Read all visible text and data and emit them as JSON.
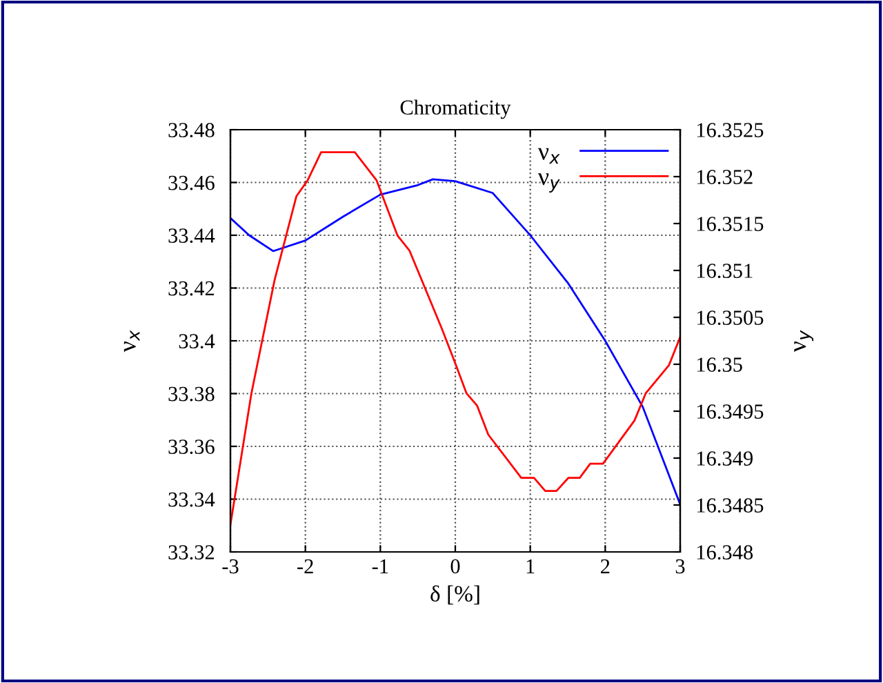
{
  "chart_data": {
    "type": "line",
    "title": "Chromaticity",
    "xlabel": "δ [%]",
    "ylabel": "ν$_{x}$",
    "y2label": "ν$_{y}$",
    "xlim": [
      -3,
      3
    ],
    "xticks": [
      -3,
      -2,
      -1,
      0,
      1,
      2,
      3
    ],
    "ylim": [
      33.32,
      33.48
    ],
    "yticks": [
      33.32,
      33.34,
      33.36,
      33.38,
      33.4,
      33.42,
      33.44,
      33.46,
      33.48
    ],
    "y2lim": [
      16.348,
      16.3525
    ],
    "y2ticks": [
      16.348,
      16.3485,
      16.349,
      16.3495,
      16.35,
      16.3505,
      16.351,
      16.3515,
      16.352,
      16.3525
    ],
    "grid": true,
    "legend": "top right",
    "line_style": "solid",
    "marker": "none",
    "series": [
      {
        "name": "ν$_{x}$",
        "color": "#0000ff",
        "x": [
          -3,
          -2.75,
          -2.43,
          -2,
          -1.5,
          -1,
          -0.5,
          -0.3,
          0,
          0.5,
          1,
          1.5,
          2,
          2.5,
          3
        ],
        "values": [
          33.4465,
          33.44,
          33.434,
          33.438,
          33.447,
          33.4554,
          33.459,
          33.4612,
          33.4605,
          33.456,
          33.44,
          33.422,
          33.4,
          33.375,
          33.338
        ]
      },
      {
        "name": "ν$_{y}$",
        "color": "#ff0000",
        "axis": "y2",
        "x": [
          -3,
          -2.72,
          -2.41,
          -2.12,
          -1.97,
          -1.79,
          -1.34,
          -1.05,
          -0.77,
          -0.61,
          -0.18,
          0,
          0.15,
          0.29,
          0.44,
          0.88,
          1.05,
          1.2,
          1.35,
          1.51,
          1.66,
          1.8,
          1.97,
          2.39,
          2.54,
          2.85,
          3
        ],
        "values": [
          16.34829,
          16.34969,
          16.3509,
          16.35179,
          16.35196,
          16.35226,
          16.35226,
          16.35196,
          16.35137,
          16.35121,
          16.35038,
          16.35001,
          16.34969,
          16.34956,
          16.34925,
          16.34879,
          16.34879,
          16.34865,
          16.34865,
          16.34879,
          16.34879,
          16.34894,
          16.34894,
          16.3494,
          16.34969,
          16.34999,
          16.35029
        ]
      }
    ]
  }
}
